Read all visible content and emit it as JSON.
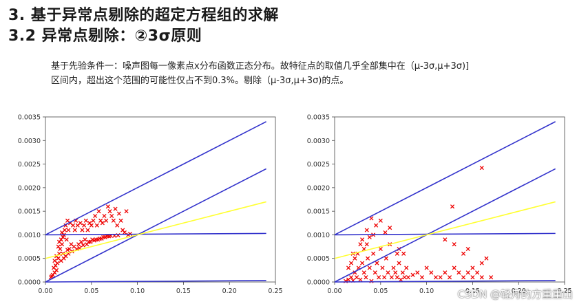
{
  "title_line1": "3.   基于异常点剔除的超定方程组的求解",
  "title_line2": "3.2 异常点剔除：②3σ原则",
  "paragraph": {
    "line1": "基于先验条件一：噪声图每一像素点x分布函数正态分布。故特征点的取值几乎全部集中在（μ-3σ,μ+3σ)]",
    "line2": "区间内，超出这个范围的可能性仅占不到0.3%。剔除（μ-3σ,μ+3σ)的点。"
  },
  "watermark": "CSDN @轻舟的方重重山",
  "colors": {
    "lines": "#3333cc",
    "fit": "#ffff33",
    "points": "#ee0000"
  },
  "chart_data": [
    {
      "type": "scatter",
      "title": "",
      "xlabel": "",
      "ylabel": "",
      "xlim": [
        0.0,
        0.25
      ],
      "ylim": [
        0.0,
        0.0035
      ],
      "x_ticks": [
        "0.00",
        "0.05",
        "0.10",
        "0.15",
        "0.20",
        "0.25"
      ],
      "y_ticks": [
        "0.0000",
        "0.0005",
        "0.0010",
        "0.0015",
        "0.0020",
        "0.0025",
        "0.0030",
        "0.0035"
      ],
      "lines": [
        {
          "color": "blue",
          "points": [
            [
              0.0,
              0.001
            ],
            [
              0.24,
              0.0034
            ]
          ]
        },
        {
          "color": "blue",
          "points": [
            [
              0.0,
              0.001
            ],
            [
              0.24,
              0.00103
            ]
          ]
        },
        {
          "color": "blue",
          "points": [
            [
              0.0,
              0.0
            ],
            [
              0.24,
              0.0024
            ]
          ]
        },
        {
          "color": "blue",
          "points": [
            [
              0.0,
              0.0
            ],
            [
              0.24,
              3e-05
            ]
          ]
        },
        {
          "color": "yellow",
          "points": [
            [
              0.0,
              0.0005
            ],
            [
              0.24,
              0.0017
            ]
          ]
        }
      ],
      "points": [
        [
          0.008,
          0.00015
        ],
        [
          0.01,
          0.0002
        ],
        [
          0.012,
          0.00025
        ],
        [
          0.009,
          0.0003
        ],
        [
          0.011,
          0.00035
        ],
        [
          0.013,
          0.0004
        ],
        [
          0.01,
          0.00045
        ],
        [
          0.014,
          0.0005
        ],
        [
          0.012,
          0.00055
        ],
        [
          0.015,
          0.0006
        ],
        [
          0.016,
          0.0007
        ],
        [
          0.018,
          0.0008
        ],
        [
          0.014,
          0.00075
        ],
        [
          0.017,
          0.0009
        ],
        [
          0.019,
          0.00095
        ],
        [
          0.02,
          0.001
        ],
        [
          0.015,
          0.00085
        ],
        [
          0.021,
          0.0011
        ],
        [
          0.018,
          0.00105
        ],
        [
          0.022,
          0.0012
        ],
        [
          0.024,
          0.0013
        ],
        [
          0.023,
          0.0009
        ],
        [
          0.025,
          0.0011
        ],
        [
          0.027,
          0.00125
        ],
        [
          0.026,
          0.0007
        ],
        [
          0.028,
          0.0008
        ],
        [
          0.03,
          0.0012
        ],
        [
          0.032,
          0.0011
        ],
        [
          0.029,
          0.00065
        ],
        [
          0.031,
          0.00075
        ],
        [
          0.033,
          0.0013
        ],
        [
          0.035,
          0.0012
        ],
        [
          0.034,
          0.0007
        ],
        [
          0.036,
          0.0008
        ],
        [
          0.038,
          0.00125
        ],
        [
          0.04,
          0.0011
        ],
        [
          0.037,
          0.00072
        ],
        [
          0.039,
          0.00085
        ],
        [
          0.042,
          0.0012
        ],
        [
          0.044,
          0.0013
        ],
        [
          0.041,
          0.00078
        ],
        [
          0.043,
          0.0009
        ],
        [
          0.046,
          0.0011
        ],
        [
          0.048,
          0.00125
        ],
        [
          0.045,
          0.0008
        ],
        [
          0.047,
          0.00085
        ],
        [
          0.05,
          0.0012
        ],
        [
          0.052,
          0.0013
        ],
        [
          0.049,
          0.00085
        ],
        [
          0.051,
          0.0009
        ],
        [
          0.054,
          0.0014
        ],
        [
          0.056,
          0.0012
        ],
        [
          0.053,
          0.00088
        ],
        [
          0.055,
          0.0009
        ],
        [
          0.058,
          0.0015
        ],
        [
          0.06,
          0.0013
        ],
        [
          0.057,
          0.0009
        ],
        [
          0.059,
          0.00092
        ],
        [
          0.062,
          0.00125
        ],
        [
          0.064,
          0.0014
        ],
        [
          0.061,
          0.00092
        ],
        [
          0.063,
          0.00095
        ],
        [
          0.066,
          0.0013
        ],
        [
          0.068,
          0.0016
        ],
        [
          0.065,
          0.00095
        ],
        [
          0.067,
          0.00097
        ],
        [
          0.07,
          0.0015
        ],
        [
          0.072,
          0.0014
        ],
        [
          0.069,
          0.00097
        ],
        [
          0.071,
          0.00098
        ],
        [
          0.074,
          0.0013
        ],
        [
          0.076,
          0.00155
        ],
        [
          0.075,
          0.00098
        ],
        [
          0.078,
          0.0012
        ],
        [
          0.08,
          0.00145
        ],
        [
          0.079,
          0.00099
        ],
        [
          0.082,
          0.0013
        ],
        [
          0.084,
          0.0011
        ],
        [
          0.086,
          0.00105
        ],
        [
          0.088,
          0.0015
        ],
        [
          0.09,
          0.001
        ],
        [
          0.092,
          0.00102
        ],
        [
          0.006,
          0.0001
        ],
        [
          0.007,
          0.00012
        ],
        [
          0.017,
          0.00045
        ],
        [
          0.02,
          0.0005
        ],
        [
          0.022,
          0.00055
        ],
        [
          0.025,
          0.0006
        ],
        [
          0.019,
          0.0006
        ],
        [
          0.024,
          0.00068
        ]
      ]
    },
    {
      "type": "scatter",
      "title": "",
      "xlabel": "",
      "ylabel": "",
      "xlim": [
        0.0,
        0.25
      ],
      "ylim": [
        0.0,
        0.0035
      ],
      "x_ticks": [
        "0.00",
        "0.05",
        "0.10",
        "0.15",
        "0.20",
        "0.25"
      ],
      "y_ticks": [
        "0.0000",
        "0.0005",
        "0.0010",
        "0.0015",
        "0.0020",
        "0.0025",
        "0.0030",
        "0.0035"
      ],
      "lines": [
        {
          "color": "blue",
          "points": [
            [
              0.0,
              0.001
            ],
            [
              0.24,
              0.0034
            ]
          ]
        },
        {
          "color": "blue",
          "points": [
            [
              0.0,
              0.001
            ],
            [
              0.24,
              0.00103
            ]
          ]
        },
        {
          "color": "blue",
          "points": [
            [
              0.0,
              0.0
            ],
            [
              0.24,
              0.0024
            ]
          ]
        },
        {
          "color": "blue",
          "points": [
            [
              0.0,
              0.0
            ],
            [
              0.24,
              3e-05
            ]
          ]
        },
        {
          "color": "yellow",
          "points": [
            [
              0.0,
              0.0005
            ],
            [
              0.24,
              0.0017
            ]
          ]
        }
      ],
      "points": [
        [
          0.012,
          2e-05
        ],
        [
          0.015,
          5e-05
        ],
        [
          0.018,
          0.0001
        ],
        [
          0.02,
          3e-05
        ],
        [
          0.022,
          0.0002
        ],
        [
          0.024,
          0.0001
        ],
        [
          0.026,
          0.0003
        ],
        [
          0.028,
          5e-05
        ],
        [
          0.03,
          0.0004
        ],
        [
          0.032,
          0.0002
        ],
        [
          0.034,
          0.0001
        ],
        [
          0.036,
          0.0005
        ],
        [
          0.038,
          0.0003
        ],
        [
          0.04,
          2e-05
        ],
        [
          0.042,
          0.0006
        ],
        [
          0.044,
          0.0002
        ],
        [
          0.046,
          0.0004
        ],
        [
          0.048,
          0.0001
        ],
        [
          0.05,
          0.0007
        ],
        [
          0.052,
          0.0003
        ],
        [
          0.054,
          0.0001
        ],
        [
          0.056,
          0.0005
        ],
        [
          0.058,
          0.0002
        ],
        [
          0.06,
          0.0008
        ],
        [
          0.062,
          0.0001
        ],
        [
          0.064,
          0.0003
        ],
        [
          0.066,
          0.0002
        ],
        [
          0.068,
          0.0001
        ],
        [
          0.07,
          0.0004
        ],
        [
          0.072,
          5e-05
        ],
        [
          0.074,
          0.0002
        ],
        [
          0.076,
          0.0001
        ],
        [
          0.078,
          0.0003
        ],
        [
          0.08,
          0.0001
        ],
        [
          0.085,
          0.00015
        ],
        [
          0.09,
          0.0002
        ],
        [
          0.095,
          0.0001
        ],
        [
          0.1,
          0.0003
        ],
        [
          0.105,
          0.0002
        ],
        [
          0.11,
          0.0001
        ],
        [
          0.115,
          0.0001
        ],
        [
          0.12,
          0.0002
        ],
        [
          0.125,
          0.0001
        ],
        [
          0.13,
          0.0003
        ],
        [
          0.135,
          0.0002
        ],
        [
          0.14,
          0.0001
        ],
        [
          0.145,
          0.0002
        ],
        [
          0.15,
          0.0001
        ],
        [
          0.155,
          0.0002
        ],
        [
          0.16,
          0.0001
        ],
        [
          0.165,
          0.0005
        ],
        [
          0.17,
          0.0001
        ],
        [
          0.03,
          0.0009
        ],
        [
          0.035,
          0.0011
        ],
        [
          0.04,
          0.00135
        ],
        [
          0.045,
          0.0012
        ],
        [
          0.05,
          0.0013
        ],
        [
          0.038,
          0.00095
        ],
        [
          0.042,
          0.001
        ],
        [
          0.055,
          0.00105
        ],
        [
          0.06,
          0.00115
        ],
        [
          0.028,
          0.0008
        ],
        [
          0.032,
          0.0007
        ],
        [
          0.025,
          0.0006
        ],
        [
          0.035,
          0.0008
        ],
        [
          0.128,
          0.0016
        ],
        [
          0.12,
          0.0009
        ],
        [
          0.14,
          0.0006
        ],
        [
          0.145,
          0.0007
        ],
        [
          0.16,
          0.0004
        ],
        [
          0.15,
          0.0003
        ],
        [
          0.13,
          0.0008
        ],
        [
          0.068,
          0.0006
        ],
        [
          0.07,
          0.0007
        ],
        [
          0.075,
          0.0006
        ],
        [
          0.015,
          0.0003
        ],
        [
          0.018,
          0.0004
        ],
        [
          0.02,
          0.0006
        ],
        [
          0.022,
          0.0005
        ],
        [
          0.16,
          0.00242
        ]
      ]
    }
  ]
}
